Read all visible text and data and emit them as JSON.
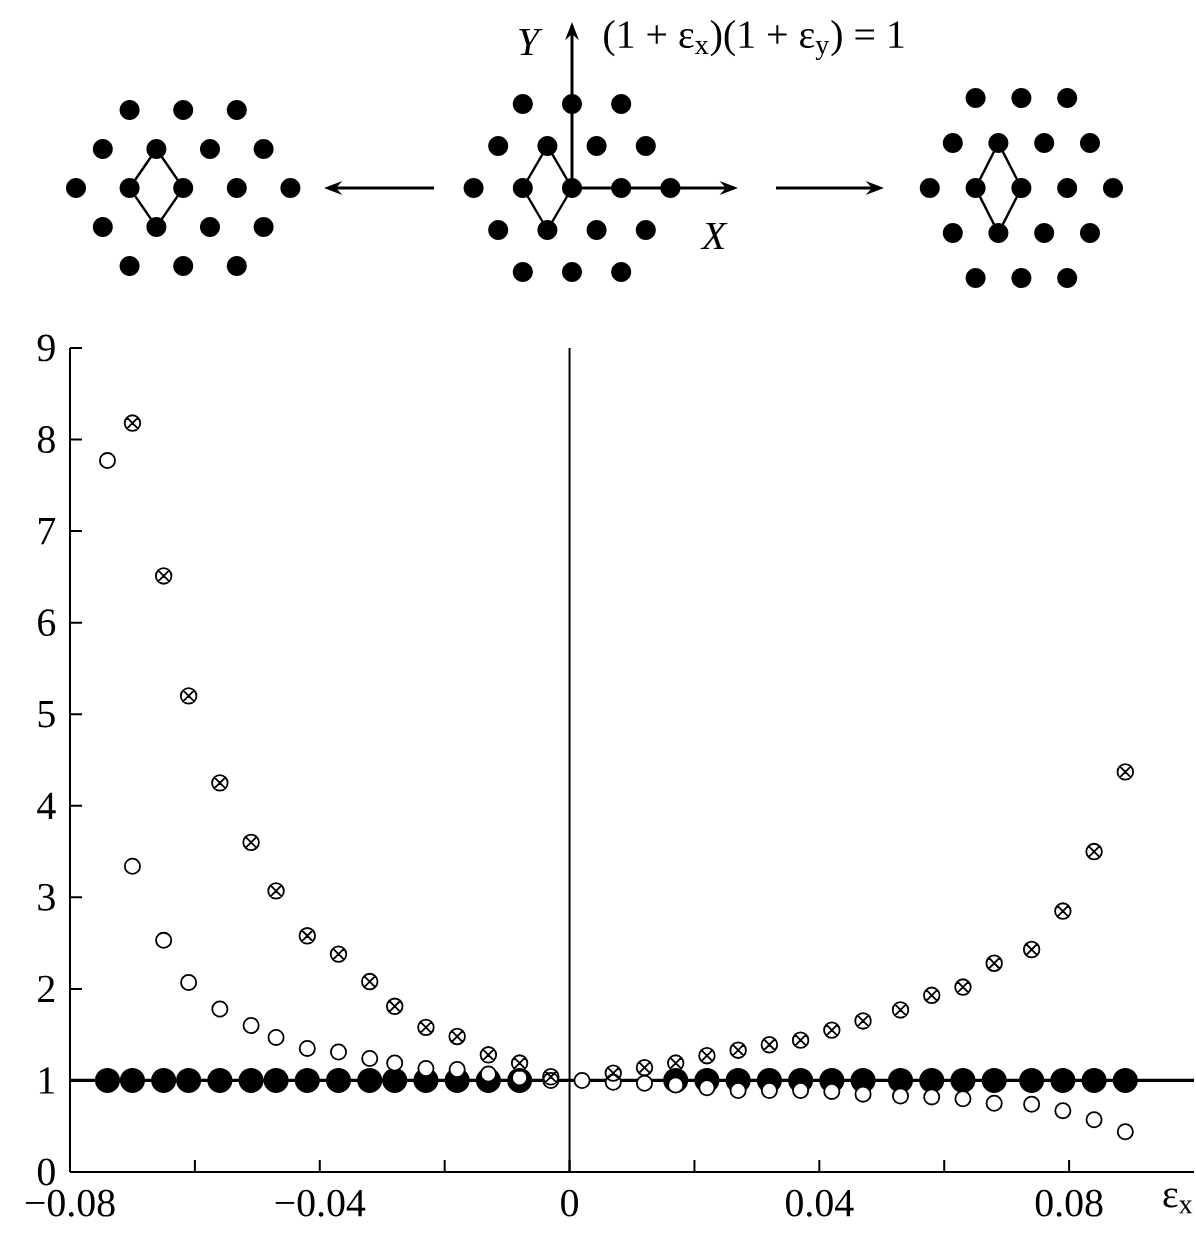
{
  "chart_data": {
    "type": "scatter",
    "x": [
      -0.074,
      -0.07,
      -0.065,
      -0.061,
      -0.056,
      -0.051,
      -0.047,
      -0.042,
      -0.037,
      -0.032,
      -0.028,
      -0.023,
      -0.018,
      -0.013,
      -0.008,
      -0.003,
      0.002,
      0.007,
      0.012,
      0.017,
      0.022,
      0.027,
      0.032,
      0.037,
      0.042,
      0.047,
      0.053,
      0.058,
      0.063,
      0.068,
      0.074,
      0.079,
      0.084,
      0.089
    ],
    "series": [
      {
        "color": "#000000",
        "marker": "circle",
        "values": [
          1,
          1,
          1,
          1,
          1,
          1,
          1,
          1,
          1,
          1,
          1,
          1,
          1,
          1,
          1,
          null,
          null,
          null,
          null,
          1,
          1,
          1,
          1,
          1,
          1,
          1,
          1,
          1,
          1,
          1,
          1,
          1,
          1,
          1
        ]
      },
      {
        "color": "#ffffff",
        "marker": "circle",
        "values": [
          7.77,
          3.34,
          2.53,
          2.07,
          1.78,
          1.6,
          1.47,
          1.35,
          1.31,
          1.24,
          1.19,
          1.13,
          1.12,
          1.07,
          1.03,
          1.0,
          1.0,
          0.98,
          0.97,
          0.95,
          0.92,
          0.89,
          0.89,
          0.89,
          0.88,
          0.85,
          0.83,
          0.82,
          0.8,
          0.75,
          0.74,
          0.67,
          0.57,
          0.44
        ]
      },
      {
        "color": "#000000",
        "marker": "cross",
        "values": [
          null,
          8.18,
          6.51,
          5.2,
          4.25,
          3.6,
          3.07,
          2.58,
          2.38,
          2.08,
          1.81,
          1.58,
          1.48,
          1.28,
          1.19,
          1.04,
          null,
          1.08,
          1.14,
          1.19,
          1.27,
          1.33,
          1.39,
          1.44,
          1.55,
          1.65,
          1.77,
          1.93,
          2.02,
          2.28,
          2.43,
          2.85,
          3.5,
          4.37
        ]
      }
    ],
    "xlabel": "ε$_{x}$",
    "xlim": [
      -0.08,
      0.1
    ],
    "xticks": [
      {
        "value": -0.08,
        "label": "−0.08"
      },
      {
        "value": -0.06,
        "label": null
      },
      {
        "value": -0.04,
        "label": "−0.04"
      },
      {
        "value": -0.02,
        "label": null
      },
      0,
      {
        "value": 0.02,
        "label": null
      },
      0.04,
      {
        "value": 0.06,
        "label": null
      },
      0.08
    ],
    "ylim": [
      0,
      9
    ],
    "yticks": [
      0,
      1,
      2,
      3,
      4,
      5,
      6,
      7,
      8,
      9
    ],
    "ref_lines": [
      {
        "axis": "x",
        "value": 0
      },
      {
        "axis": "y",
        "value": 1
      }
    ],
    "annotations": [
      "(1 + ε$_{x}$)(1 + ε$_{y}$) = 1",
      "X",
      "Y"
    ]
  }
}
